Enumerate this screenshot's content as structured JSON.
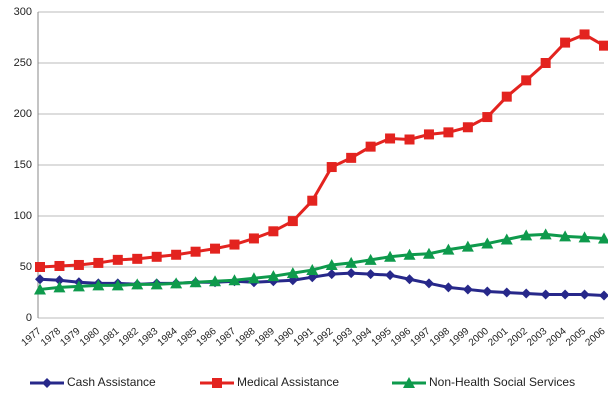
{
  "chart_data": {
    "type": "line",
    "categories": [
      "1977",
      "1978",
      "1979",
      "1980",
      "1981",
      "1982",
      "1983",
      "1984",
      "1985",
      "1986",
      "1987",
      "1988",
      "1989",
      "1990",
      "1991",
      "1992",
      "1993",
      "1994",
      "1995",
      "1996",
      "1997",
      "1998",
      "1999",
      "2000",
      "2001",
      "2002",
      "2003",
      "2004",
      "2005",
      "2006"
    ],
    "series": [
      {
        "name": "Cash Assistance",
        "color": "#27288a",
        "marker": "diamond",
        "values": [
          38,
          37,
          35,
          34,
          34,
          33,
          34,
          34,
          35,
          35,
          36,
          35,
          36,
          37,
          40,
          43,
          44,
          43,
          42,
          38,
          34,
          30,
          28,
          26,
          25,
          24,
          23,
          23,
          23,
          22
        ]
      },
      {
        "name": "Medical Assistance",
        "color": "#e3231f",
        "marker": "square",
        "values": [
          50,
          51,
          52,
          54,
          57,
          58,
          60,
          62,
          65,
          68,
          72,
          78,
          85,
          95,
          115,
          148,
          157,
          168,
          176,
          175,
          180,
          182,
          187,
          197,
          217,
          233,
          250,
          270,
          278,
          267
        ]
      },
      {
        "name": "Non-Health Social Services",
        "color": "#0e9a4c",
        "marker": "triangle",
        "values": [
          28,
          30,
          31,
          32,
          32,
          33,
          33,
          34,
          35,
          36,
          37,
          39,
          41,
          44,
          47,
          52,
          54,
          57,
          60,
          62,
          63,
          67,
          70,
          73,
          77,
          81,
          82,
          80,
          79,
          78
        ]
      }
    ],
    "ylim": [
      0,
      300
    ],
    "yticks": [
      0,
      50,
      100,
      150,
      200,
      250,
      300
    ],
    "grid": true
  }
}
